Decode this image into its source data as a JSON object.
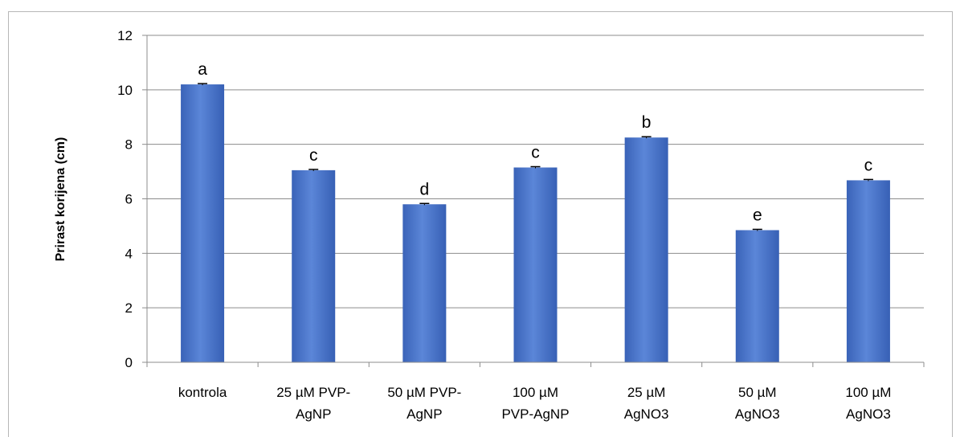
{
  "chart_data": {
    "type": "bar",
    "title": "",
    "xlabel": "",
    "ylabel": "Prirast korijena (cm)",
    "ylim": [
      0,
      12
    ],
    "yticks": [
      0,
      2,
      4,
      6,
      8,
      10,
      12
    ],
    "grid": true,
    "legend": "none",
    "bar_color": "#3f6cc6",
    "categories": [
      [
        "kontrola"
      ],
      [
        "25 µM PVP-",
        "AgNP"
      ],
      [
        "50 µM PVP-",
        "AgNP"
      ],
      [
        "100 µM",
        "PVP-AgNP"
      ],
      [
        "25 µM",
        "AgNO3"
      ],
      [
        "50 µM",
        "AgNO3"
      ],
      [
        "100 µM",
        "AgNO3"
      ]
    ],
    "values": [
      10.2,
      7.05,
      5.8,
      7.15,
      8.25,
      4.85,
      6.68
    ],
    "errors": [
      0.03,
      0.03,
      0.03,
      0.03,
      0.03,
      0.03,
      0.03
    ],
    "significance_labels": [
      "a",
      "c",
      "d",
      "c",
      "b",
      "e",
      "c"
    ]
  }
}
